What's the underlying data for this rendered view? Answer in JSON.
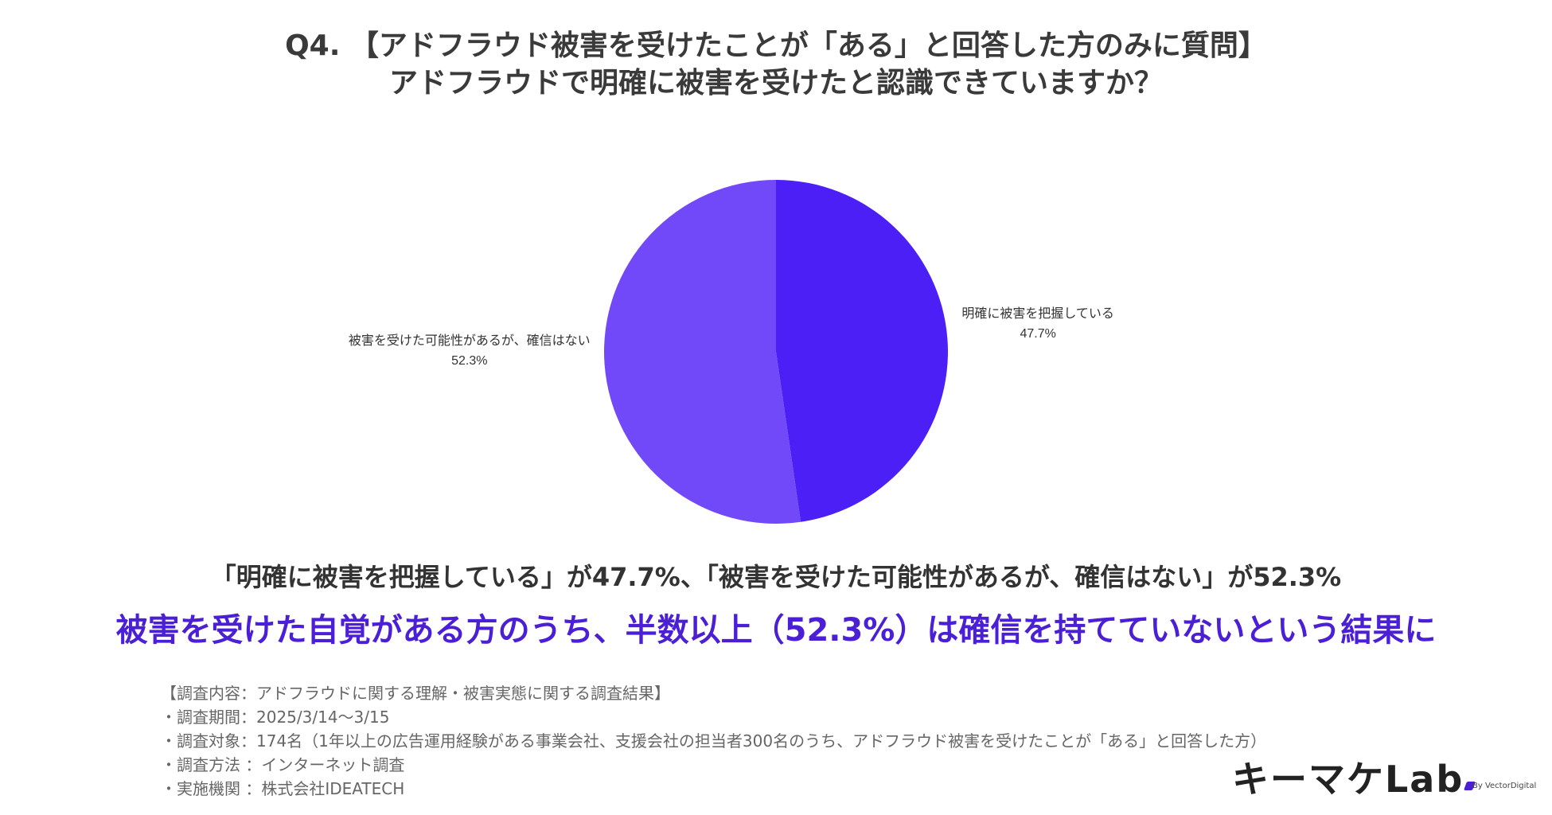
{
  "title": {
    "line1": "Q4. 【アドフラウド被害を受けたことが「ある」と回答した方のみに質問】",
    "line2": "アドフラウドで明確に被害を受けたと認識できていますか？"
  },
  "chart_data": {
    "type": "pie",
    "slices": [
      {
        "label": "明確に被害を把握している",
        "value": 47.7,
        "value_label": "47.7%",
        "color": "#4b1ff5"
      },
      {
        "label": "被害を受けた可能性があるが、確信はない",
        "value": 52.3,
        "value_label": "52.3%",
        "color": "#7249f9"
      }
    ],
    "start_angle": "12 o'clock, clockwise",
    "legend": "none"
  },
  "summary": {
    "line1": "「明確に被害を把握している」が47.7%、「被害を受けた可能性があるが、確信はない」が52.3%",
    "line2": "被害を受けた自覚がある方のうち、半数以上（52.3%）は確信を持てていないという結果に"
  },
  "notes": [
    "【調査内容：アドフラウドに関する理解・被害実態に関する調査結果】",
    "・調査期間：2025/3/14〜3/15",
    "・調査対象：174名（1年以上の広告運用経験がある事業会社、支援会社の担当者300名のうち、アドフラウド被害を受けたことが「ある」と回答した方）",
    "・調査方法 ：インターネット調査",
    "・実施機関 ：株式会社IDEATECH"
  ],
  "logo": {
    "text": "キーマケLab",
    "byline": "By VectorDigital",
    "accent_color": "#4b1fd6"
  }
}
